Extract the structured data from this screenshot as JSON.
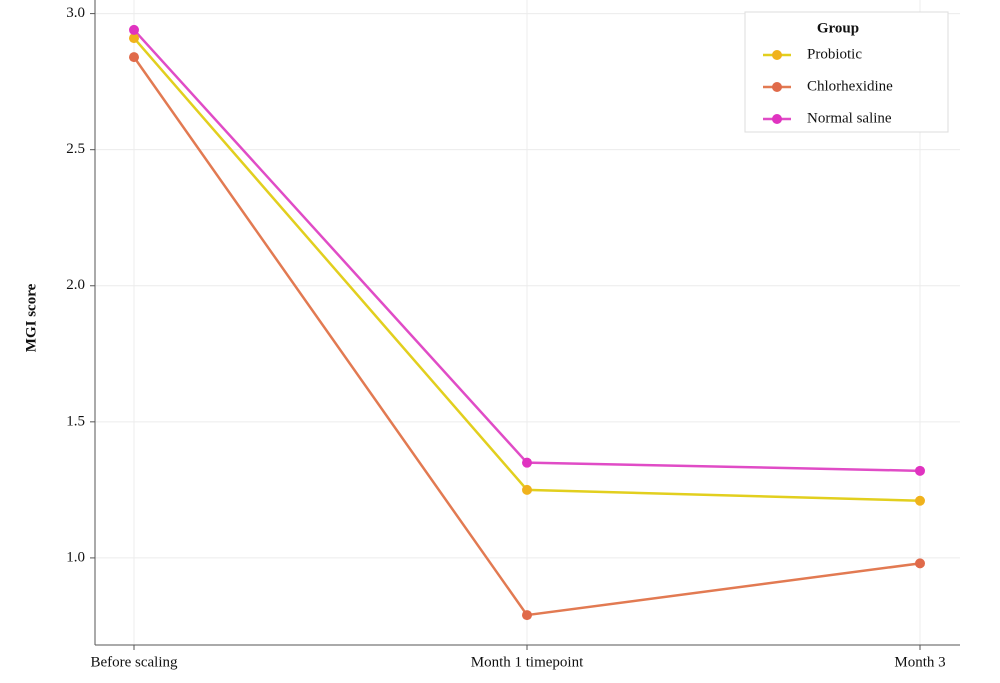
{
  "chart_data": {
    "type": "line",
    "y_label": "MGI score",
    "categories": [
      "Before scaling",
      "Month 1 timepoint",
      "Month 3"
    ],
    "series": [
      {
        "name": "Probiotic",
        "color": "#e2cf1e",
        "marker_color": "#f0b21c",
        "values": [
          2.91,
          1.25,
          1.21
        ]
      },
      {
        "name": "Chlorhexidine",
        "color": "#e27a52",
        "marker_color": "#e06a4a",
        "values": [
          2.84,
          0.79,
          0.98
        ]
      },
      {
        "name": "Normal saline",
        "color": "#e04cc6",
        "marker_color": "#e033c0",
        "values": [
          2.94,
          1.35,
          1.32
        ]
      }
    ],
    "legend_title": "Group",
    "legend": "top-right",
    "ylim": [
      0.68,
      3.05
    ],
    "yticks": [
      {
        "value": 1,
        "label": "1.0"
      },
      {
        "value": 1.5,
        "label": "1.5"
      },
      {
        "value": 2,
        "label": "2.0"
      },
      {
        "value": 2.5,
        "label": "2.5"
      },
      {
        "value": 3,
        "label": "3.0"
      }
    ],
    "grid": true
  }
}
